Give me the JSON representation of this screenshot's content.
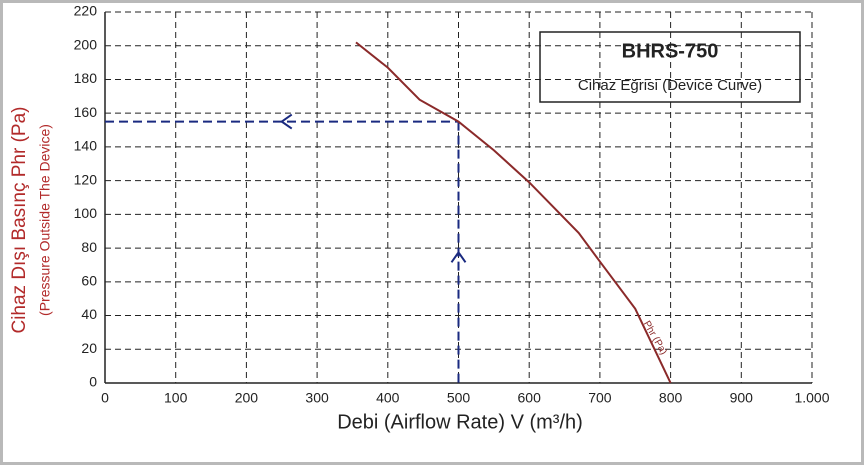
{
  "chart_data": {
    "type": "line",
    "title": "BHRS-750",
    "subtitle": "Cihaz Eğrisi (Device Curve)",
    "y_label": "Cihaz Dışı Basınç Phr (Pa)",
    "y_label_sub": "(Pressure Outside The Device)",
    "x_label": "Debi (Airflow Rate)    V (m³/h)",
    "x": [
      355,
      400,
      445,
      500,
      550,
      600,
      670,
      700,
      750,
      800
    ],
    "series": [
      {
        "name": "Phr (Pa)",
        "color": "#8b2a2a",
        "values": [
          202,
          187,
          168,
          155,
          138,
          119,
          89,
          72,
          44,
          0
        ]
      }
    ],
    "operating_point": {
      "x": 500,
      "y": 155
    },
    "xlim": [
      0,
      1000
    ],
    "xticks": [
      0,
      100,
      200,
      300,
      400,
      500,
      600,
      700,
      800,
      900,
      {
        "value": 1000,
        "label": "1.000"
      }
    ],
    "ylim": [
      0,
      220
    ],
    "yticks": [
      0,
      20,
      40,
      60,
      80,
      100,
      120,
      140,
      160,
      180,
      200,
      220
    ],
    "grid": true
  }
}
